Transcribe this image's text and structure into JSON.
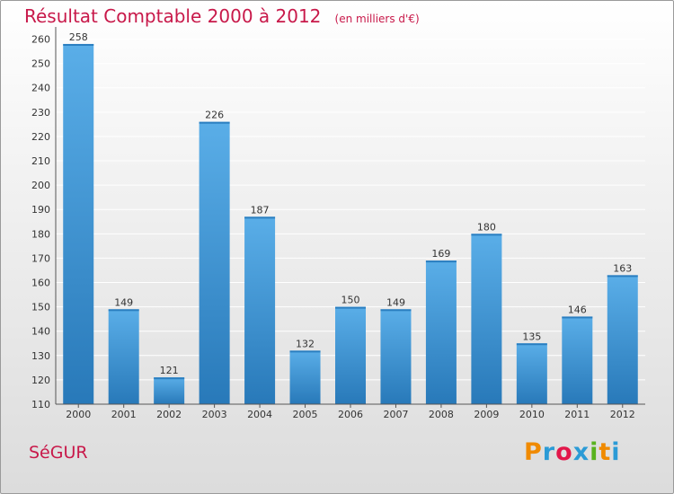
{
  "chart_data": {
    "type": "bar",
    "title": "Résultat Comptable 2000 à 2012",
    "subtitle": "(en milliers d'€)",
    "categories": [
      "2000",
      "2001",
      "2002",
      "2003",
      "2004",
      "2005",
      "2006",
      "2007",
      "2008",
      "2009",
      "2010",
      "2011",
      "2012"
    ],
    "values": [
      258,
      149,
      121,
      226,
      187,
      132,
      150,
      149,
      169,
      180,
      135,
      146,
      163
    ],
    "ylim": [
      110,
      265
    ],
    "yticks": [
      110,
      120,
      130,
      140,
      150,
      160,
      170,
      180,
      190,
      200,
      210,
      220,
      230,
      240,
      250,
      260
    ],
    "grid": true,
    "xlabel": "",
    "ylabel": ""
  },
  "commune": "SéGUR",
  "logo": {
    "text": "Proxiti",
    "letters": [
      "P",
      "r",
      "o",
      "x",
      "i",
      "t",
      "i"
    ],
    "colors": [
      "#f08a00",
      "#2b9bd6",
      "#e2174a",
      "#2b9bd6",
      "#58b21e",
      "#f08a00",
      "#2b9bd6"
    ]
  },
  "colors": {
    "title": "#c8194a",
    "bar_light": "#5aaee8",
    "bar_dark": "#2879b9",
    "grid": "#ffffff"
  }
}
